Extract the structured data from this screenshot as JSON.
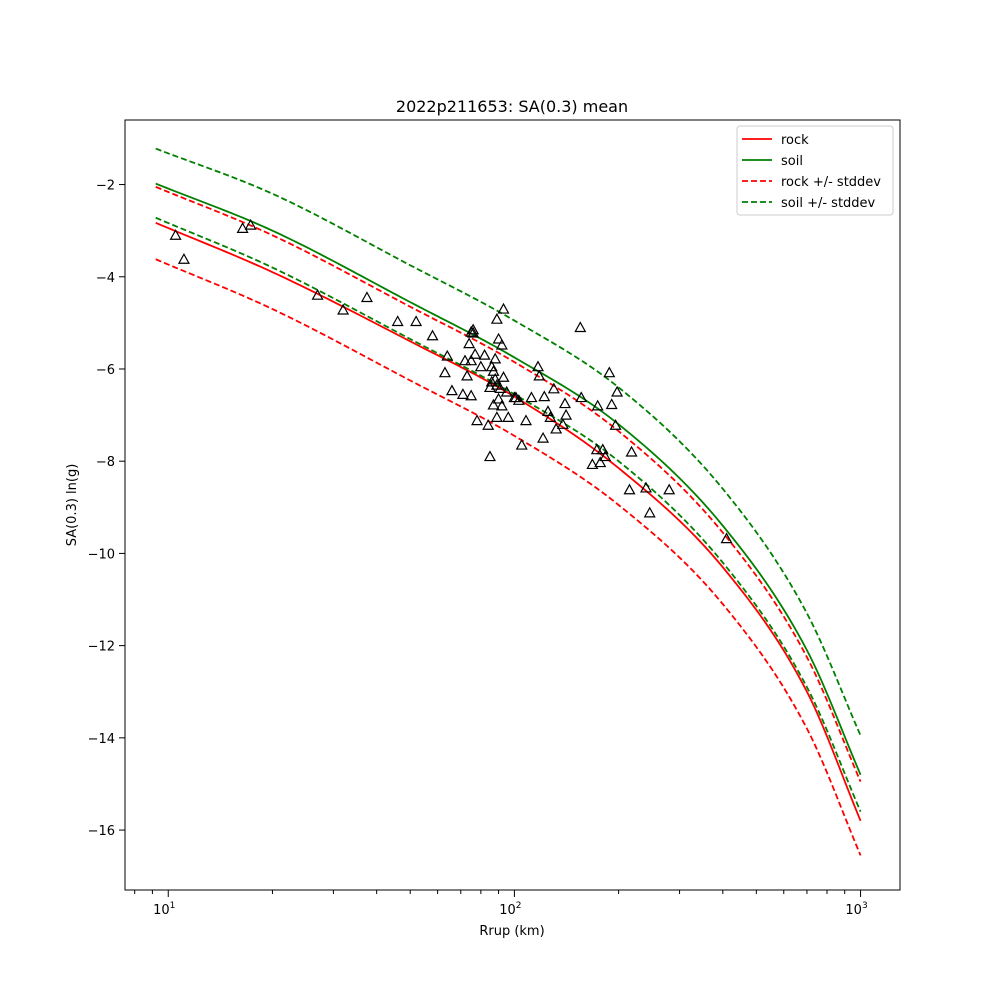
{
  "chart_data": {
    "type": "line",
    "title": "2022p211653: SA(0.3) mean",
    "xlabel": "Rrup (km)",
    "ylabel": "SA(0.3) ln(g)",
    "xscale": "log",
    "xlim": [
      7.5,
      1300
    ],
    "ylim": [
      -17.3,
      -0.6
    ],
    "x_ticks": [
      10,
      100,
      1000
    ],
    "x_tick_labels": [
      [
        "10",
        "1"
      ],
      [
        "10",
        "2"
      ],
      [
        "10",
        "3"
      ]
    ],
    "y_ticks": [
      -16,
      -14,
      -12,
      -10,
      -8,
      -6,
      -4,
      -2
    ],
    "y_tick_labels": [
      "−16",
      "−14",
      "−12",
      "−10",
      "−8",
      "−6",
      "−4",
      "−2"
    ],
    "grid": false,
    "legend_position": "top-right",
    "colors": {
      "rock": "#ff0000",
      "soil": "#008000",
      "stations": "#000000"
    },
    "series": [
      {
        "name": "rock",
        "color": "#ff0000",
        "style": "solid",
        "x": [
          9.2,
          20,
          50,
          100,
          200,
          400,
          700,
          1000
        ],
        "y": [
          -2.83,
          -3.9,
          -5.4,
          -6.6,
          -8.15,
          -10.3,
          -13.0,
          -15.8
        ]
      },
      {
        "name": "soil",
        "color": "#008000",
        "style": "solid",
        "x": [
          9.2,
          20,
          50,
          100,
          200,
          400,
          700,
          1000
        ],
        "y": [
          -1.98,
          -3.0,
          -4.55,
          -5.75,
          -7.2,
          -9.4,
          -12.1,
          -14.8
        ]
      },
      {
        "name": "rock +/- stddev",
        "color": "#ff0000",
        "style": "dashed",
        "x": [
          9.2,
          20,
          50,
          100,
          200,
          400,
          700,
          1000
        ],
        "y_upper": [
          -2.05,
          -3.1,
          -4.65,
          -5.85,
          -7.35,
          -9.55,
          -12.25,
          -14.95
        ],
        "y_lower": [
          -3.62,
          -4.7,
          -6.25,
          -7.45,
          -8.95,
          -11.1,
          -13.8,
          -16.55
        ]
      },
      {
        "name": "soil +/- stddev",
        "color": "#008000",
        "style": "dashed",
        "x": [
          9.2,
          20,
          50,
          100,
          200,
          400,
          700,
          1000
        ],
        "y_upper": [
          -1.22,
          -2.2,
          -3.75,
          -4.95,
          -6.4,
          -8.6,
          -11.3,
          -13.95
        ],
        "y_lower": [
          -2.72,
          -3.8,
          -5.35,
          -6.55,
          -8.0,
          -10.2,
          -12.9,
          -15.6
        ]
      }
    ],
    "observations": {
      "marker": "triangle",
      "x": [
        10.5,
        11.1,
        16.4,
        17.3,
        27,
        32,
        37.5,
        46,
        52,
        58,
        63,
        64,
        66,
        71,
        72,
        73,
        74,
        75,
        75,
        75,
        76,
        76,
        77,
        78,
        80,
        82,
        84,
        85,
        85,
        86,
        86,
        87,
        87,
        88,
        88,
        89,
        89,
        89,
        90,
        90,
        91,
        92,
        92,
        93,
        93,
        95,
        96,
        100,
        101,
        103,
        105,
        108,
        112,
        117,
        118,
        121,
        122,
        125,
        127,
        130,
        132,
        138,
        140,
        141,
        155,
        156,
        168,
        173,
        174,
        177,
        180,
        183,
        188,
        191,
        196,
        198,
        215,
        218,
        240,
        246,
        280,
        410
      ],
      "y": [
        -3.1,
        -3.62,
        -2.95,
        -2.88,
        -4.4,
        -4.72,
        -4.45,
        -4.97,
        -4.97,
        -5.28,
        -6.08,
        -5.72,
        -6.47,
        -6.55,
        -5.82,
        -6.15,
        -5.45,
        -5.2,
        -5.82,
        -6.58,
        -5.15,
        -5.22,
        -5.68,
        -7.12,
        -5.95,
        -5.7,
        -7.22,
        -7.9,
        -6.4,
        -6.28,
        -5.95,
        -6.78,
        -6.05,
        -6.22,
        -5.78,
        -7.05,
        -6.35,
        -4.92,
        -6.65,
        -5.35,
        -6.42,
        -5.48,
        -6.8,
        -4.7,
        -6.18,
        -6.5,
        -7.05,
        -6.62,
        -6.62,
        -6.68,
        -7.65,
        -7.12,
        -6.62,
        -5.95,
        -6.15,
        -7.5,
        -6.6,
        -6.92,
        -7.05,
        -6.43,
        -7.3,
        -7.2,
        -6.75,
        -7.0,
        -5.1,
        -6.62,
        -8.07,
        -7.75,
        -6.8,
        -8.03,
        -7.75,
        -7.9,
        -6.08,
        -6.77,
        -7.22,
        -6.5,
        -8.62,
        -7.8,
        -8.58,
        -9.12,
        -8.62,
        -9.68
      ]
    },
    "legend": [
      "rock",
      "soil",
      "rock +/- stddev",
      "soil +/- stddev"
    ]
  }
}
